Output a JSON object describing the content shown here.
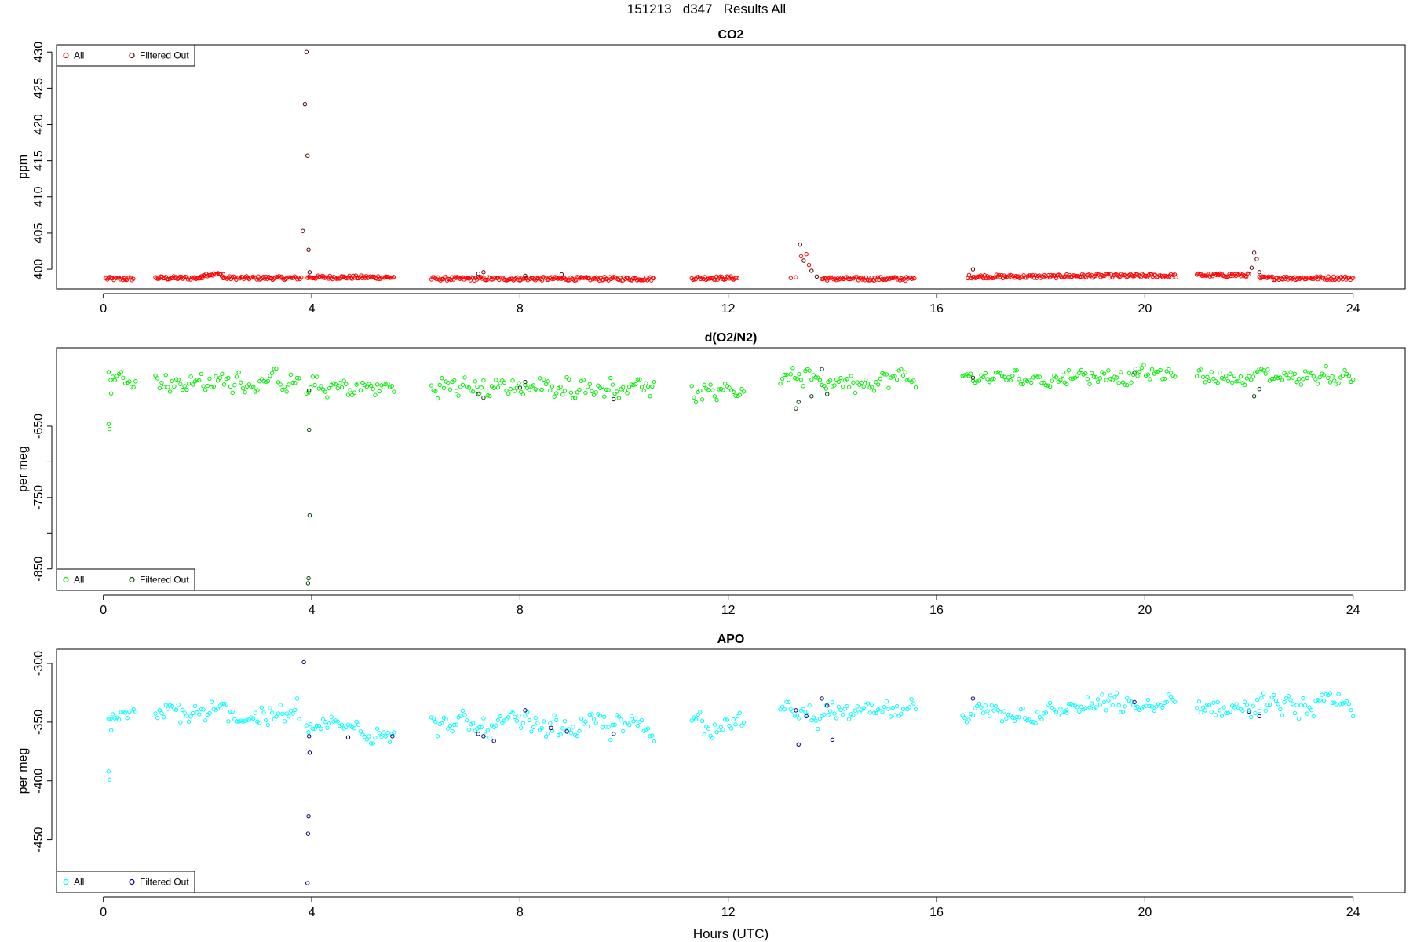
{
  "page_title": "151213   d347   Results All",
  "colors": {
    "co2_all": "#ff0000",
    "co2_filtered": "#5a0000",
    "o2n2_all": "#00ee00",
    "o2n2_filtered": "#004400",
    "apo_all": "#00ffff",
    "apo_filtered": "#000088"
  },
  "chart_data": [
    {
      "type": "scatter",
      "title": "CO2",
      "xlabel": "",
      "ylabel": "ppm",
      "xlim": [
        -0.9,
        25
      ],
      "ylim": [
        397.3,
        431
      ],
      "x_ticks": [
        0,
        4,
        8,
        12,
        16,
        20,
        24
      ],
      "x_tick_labels": [
        "0",
        "4",
        "8",
        "12",
        "16",
        "20",
        "24"
      ],
      "y_ticks": [
        400,
        405,
        410,
        415,
        420,
        425,
        430
      ],
      "y_tick_labels": [
        "400",
        "405",
        "410",
        "415",
        "420",
        "425",
        "430"
      ],
      "legend": {
        "position": "top-left",
        "entries": [
          "All",
          "Filtered Out"
        ]
      },
      "grid": false,
      "series": [
        {
          "name": "All",
          "color": "#ff0000",
          "baseline_segments": [
            {
              "x0": 0.05,
              "x1": 0.6,
              "y": 398.7
            },
            {
              "x0": 1.0,
              "x1": 1.9,
              "y": 398.8
            },
            {
              "x0": 1.9,
              "x1": 2.3,
              "y": 399.3
            },
            {
              "x0": 2.3,
              "x1": 3.8,
              "y": 398.8
            },
            {
              "x0": 3.9,
              "x1": 5.6,
              "y": 398.9
            },
            {
              "x0": 6.3,
              "x1": 10.6,
              "y": 398.7
            },
            {
              "x0": 11.3,
              "x1": 12.2,
              "y": 398.8
            },
            {
              "x0": 13.8,
              "x1": 15.6,
              "y": 398.7
            },
            {
              "x0": 16.6,
              "x1": 18.4,
              "y": 399.0
            },
            {
              "x0": 18.4,
              "x1": 20.6,
              "y": 399.1
            },
            {
              "x0": 21.0,
              "x1": 22.0,
              "y": 399.2
            },
            {
              "x0": 22.2,
              "x1": 24.0,
              "y": 398.8
            }
          ],
          "outliers": [
            {
              "x": 13.2,
              "y": 398.8
            },
            {
              "x": 13.3,
              "y": 398.9
            },
            {
              "x": 13.4,
              "y": 401.8
            },
            {
              "x": 13.5,
              "y": 402.1
            },
            {
              "x": 13.55,
              "y": 400.6
            }
          ]
        },
        {
          "name": "Filtered Out",
          "color": "#5a0000",
          "points": [
            {
              "x": 3.83,
              "y": 405.3
            },
            {
              "x": 3.87,
              "y": 422.8
            },
            {
              "x": 3.9,
              "y": 430.0
            },
            {
              "x": 3.92,
              "y": 415.7
            },
            {
              "x": 3.94,
              "y": 402.7
            },
            {
              "x": 3.96,
              "y": 399.6
            },
            {
              "x": 13.38,
              "y": 403.4
            },
            {
              "x": 13.45,
              "y": 401.2
            },
            {
              "x": 13.6,
              "y": 399.8
            },
            {
              "x": 13.7,
              "y": 399.0
            },
            {
              "x": 16.7,
              "y": 400.0
            },
            {
              "x": 7.2,
              "y": 399.4
            },
            {
              "x": 7.3,
              "y": 399.6
            },
            {
              "x": 8.1,
              "y": 399.1
            },
            {
              "x": 8.8,
              "y": 399.3
            },
            {
              "x": 22.05,
              "y": 400.2
            },
            {
              "x": 22.1,
              "y": 402.3
            },
            {
              "x": 22.15,
              "y": 401.4
            },
            {
              "x": 22.2,
              "y": 399.6
            }
          ]
        }
      ]
    },
    {
      "type": "scatter",
      "title": "d(O2/N2)",
      "xlabel": "",
      "ylabel": "per meg",
      "xlim": [
        -0.9,
        25
      ],
      "ylim": [
        -880,
        -540
      ],
      "x_ticks": [
        0,
        4,
        8,
        12,
        16,
        20,
        24
      ],
      "x_tick_labels": [
        "0",
        "4",
        "8",
        "12",
        "16",
        "20",
        "24"
      ],
      "y_ticks": [
        -650,
        -700,
        -750,
        -800,
        -850
      ],
      "y_tick_labels": [
        "-650",
        "",
        "-750",
        "",
        "-850"
      ],
      "legend": {
        "position": "bottom-left",
        "entries": [
          "All",
          "Filtered Out"
        ]
      },
      "grid": false,
      "series": [
        {
          "name": "All",
          "color": "#00ee00",
          "segments": [
            {
              "x0": 0.1,
              "x1": 0.65,
              "mean": -580,
              "spread": 12
            },
            {
              "x0": 1.0,
              "x1": 3.8,
              "mean": -588,
              "spread": 20
            },
            {
              "x0": 3.9,
              "x1": 5.6,
              "mean": -597,
              "spread": 18
            },
            {
              "x0": 6.3,
              "x1": 10.6,
              "mean": -595,
              "spread": 20
            },
            {
              "x0": 11.3,
              "x1": 12.3,
              "mean": -595,
              "spread": 22
            },
            {
              "x0": 13.0,
              "x1": 15.6,
              "mean": -585,
              "spread": 20
            },
            {
              "x0": 16.5,
              "x1": 18.5,
              "mean": -583,
              "spread": 14
            },
            {
              "x0": 18.5,
              "x1": 20.6,
              "mean": -578,
              "spread": 16
            },
            {
              "x0": 21.0,
              "x1": 24.0,
              "mean": -580,
              "spread": 16
            }
          ],
          "outliers": [
            {
              "x": 0.1,
              "y": -647
            },
            {
              "x": 0.12,
              "y": -654
            },
            {
              "x": 0.15,
              "y": -604
            }
          ]
        },
        {
          "name": "Filtered Out",
          "color": "#004400",
          "points": [
            {
              "x": 3.95,
              "y": -655
            },
            {
              "x": 3.96,
              "y": -775
            },
            {
              "x": 3.94,
              "y": -863
            },
            {
              "x": 3.93,
              "y": -870
            },
            {
              "x": 3.95,
              "y": -600
            },
            {
              "x": 13.3,
              "y": -625
            },
            {
              "x": 13.35,
              "y": -616
            },
            {
              "x": 13.6,
              "y": -608
            },
            {
              "x": 13.8,
              "y": -570
            },
            {
              "x": 13.9,
              "y": -605
            },
            {
              "x": 7.2,
              "y": -605
            },
            {
              "x": 7.3,
              "y": -610
            },
            {
              "x": 8.0,
              "y": -596
            },
            {
              "x": 8.1,
              "y": -588
            },
            {
              "x": 9.8,
              "y": -612
            },
            {
              "x": 16.7,
              "y": -582
            },
            {
              "x": 19.8,
              "y": -575
            },
            {
              "x": 22.1,
              "y": -608
            },
            {
              "x": 22.2,
              "y": -598
            }
          ]
        }
      ]
    },
    {
      "type": "scatter",
      "title": "APO",
      "xlabel": "Hours (UTC)",
      "ylabel": "per meg",
      "xlim": [
        -0.9,
        25
      ],
      "ylim": [
        -495,
        -288
      ],
      "x_ticks": [
        0,
        4,
        8,
        12,
        16,
        20,
        24
      ],
      "x_tick_labels": [
        "0",
        "4",
        "8",
        "12",
        "16",
        "20",
        "24"
      ],
      "y_ticks": [
        -300,
        -350,
        -400,
        -450
      ],
      "y_tick_labels": [
        "-300",
        "-350",
        "-400",
        "-450"
      ],
      "legend": {
        "position": "bottom-left",
        "entries": [
          "All",
          "Filtered Out"
        ]
      },
      "grid": false,
      "series": [
        {
          "name": "All",
          "color": "#00ffff",
          "segments": [
            {
              "x0": 0.1,
              "x1": 0.65,
              "mean": -344,
              "spread": 8
            },
            {
              "x0": 1.0,
              "x1": 3.8,
              "mean": -344,
              "spread": 14
            },
            {
              "x0": 3.9,
              "x1": 5.6,
              "mean": -355,
              "spread": 12
            },
            {
              "x0": 6.3,
              "x1": 10.6,
              "mean": -354,
              "spread": 14
            },
            {
              "x0": 11.3,
              "x1": 12.3,
              "mean": -350,
              "spread": 14
            },
            {
              "x0": 13.0,
              "x1": 15.6,
              "mean": -343,
              "spread": 12
            },
            {
              "x0": 16.5,
              "x1": 18.5,
              "mean": -342,
              "spread": 10
            },
            {
              "x0": 18.5,
              "x1": 20.6,
              "mean": -337,
              "spread": 12
            },
            {
              "x0": 21.0,
              "x1": 24.0,
              "mean": -337,
              "spread": 12
            }
          ],
          "outliers": [
            {
              "x": 0.1,
              "y": -392
            },
            {
              "x": 0.12,
              "y": -399
            },
            {
              "x": 0.15,
              "y": -357
            }
          ]
        },
        {
          "name": "Filtered Out",
          "color": "#000088",
          "points": [
            {
              "x": 3.85,
              "y": -299
            },
            {
              "x": 3.95,
              "y": -362
            },
            {
              "x": 3.96,
              "y": -376
            },
            {
              "x": 3.94,
              "y": -430
            },
            {
              "x": 3.93,
              "y": -445
            },
            {
              "x": 3.92,
              "y": -487
            },
            {
              "x": 4.7,
              "y": -363
            },
            {
              "x": 5.55,
              "y": -362
            },
            {
              "x": 7.2,
              "y": -360
            },
            {
              "x": 7.3,
              "y": -362
            },
            {
              "x": 7.5,
              "y": -366
            },
            {
              "x": 8.1,
              "y": -340
            },
            {
              "x": 8.6,
              "y": -355
            },
            {
              "x": 8.9,
              "y": -358
            },
            {
              "x": 9.8,
              "y": -360
            },
            {
              "x": 13.3,
              "y": -340
            },
            {
              "x": 13.35,
              "y": -369
            },
            {
              "x": 13.5,
              "y": -345
            },
            {
              "x": 13.8,
              "y": -330
            },
            {
              "x": 13.9,
              "y": -336
            },
            {
              "x": 14.0,
              "y": -365
            },
            {
              "x": 16.7,
              "y": -330
            },
            {
              "x": 19.8,
              "y": -333
            },
            {
              "x": 22.0,
              "y": -341
            },
            {
              "x": 22.2,
              "y": -345
            }
          ]
        }
      ]
    }
  ]
}
